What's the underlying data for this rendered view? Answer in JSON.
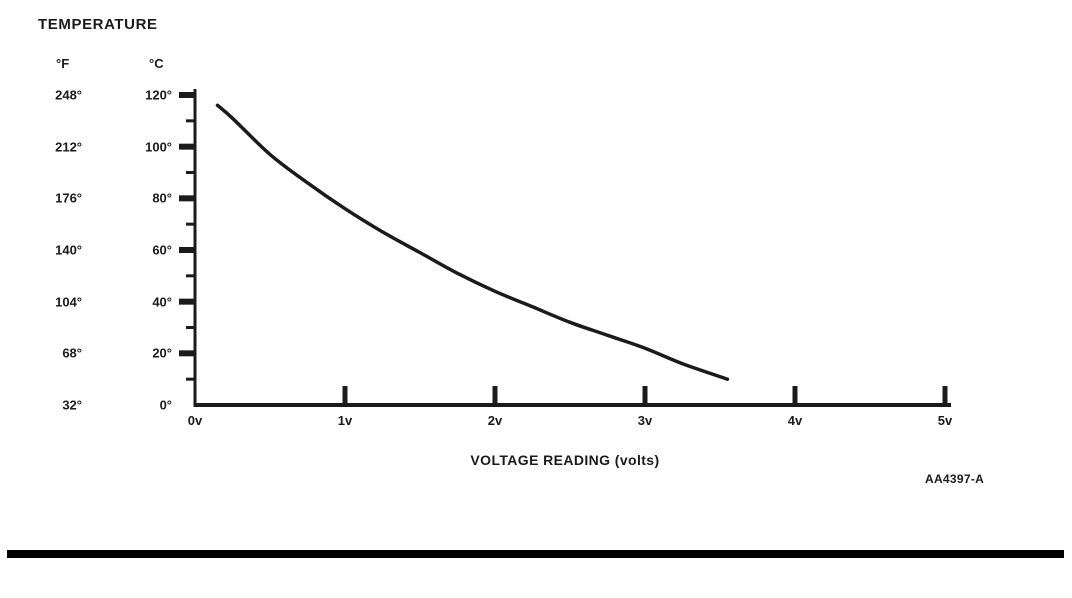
{
  "page": {
    "figure_code": "AA4397-A"
  },
  "chart_data": {
    "type": "line",
    "title": "TEMPERATURE",
    "xlabel": "VOLTAGE READING (volts)",
    "grid": false,
    "legend": "none",
    "x_axis": {
      "tick_labels": [
        "0v",
        "1v",
        "2v",
        "3v",
        "4v",
        "5v"
      ],
      "tick_values": [
        0,
        1,
        2,
        3,
        4,
        5
      ],
      "xlim": [
        0,
        5
      ]
    },
    "y_axis_f": {
      "unit_label": "°F",
      "tick_labels": [
        "248°",
        "212°",
        "176°",
        "140°",
        "104°",
        "68°",
        "32°"
      ],
      "tick_values": [
        248,
        212,
        176,
        140,
        104,
        68,
        32
      ]
    },
    "y_axis_c": {
      "unit_label": "°C",
      "tick_labels": [
        "120°",
        "100°",
        "80°",
        "60°",
        "40°",
        "20°",
        "0°"
      ],
      "tick_values": [
        120,
        100,
        80,
        60,
        40,
        20,
        0
      ],
      "minor_tick_step_c": 10,
      "ylim": [
        0,
        120
      ]
    },
    "series": [
      {
        "name": "temperature-vs-voltage",
        "x": [
          0.15,
          0.25,
          0.5,
          0.75,
          1.0,
          1.25,
          1.5,
          1.75,
          2.0,
          2.25,
          2.5,
          2.75,
          3.0,
          3.25,
          3.55
        ],
        "y_c": [
          116,
          111,
          97,
          86,
          76,
          67,
          59,
          51,
          44,
          38,
          32,
          27,
          22,
          16,
          10
        ]
      }
    ],
    "line_color": "#1b1b1b"
  }
}
